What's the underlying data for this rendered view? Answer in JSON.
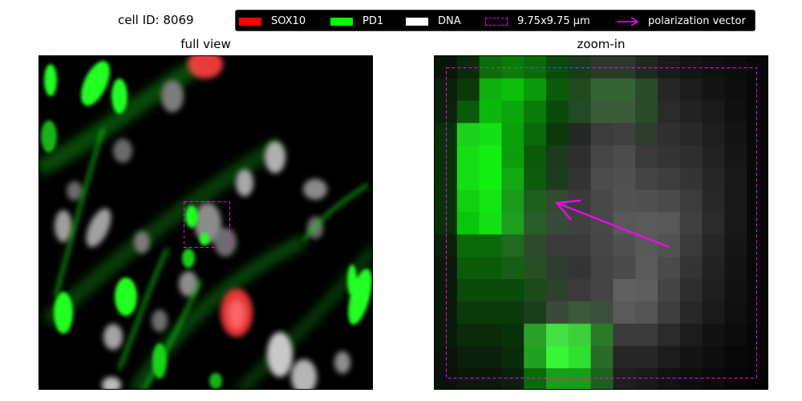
{
  "header": {
    "cell_label": "cell ID: 8069"
  },
  "legend": {
    "items": [
      {
        "label": "SOX10",
        "color": "#ff0000",
        "style": "filled"
      },
      {
        "label": "PD1",
        "color": "#00ff00",
        "style": "filled"
      },
      {
        "label": "DNA",
        "color": "#ffffff",
        "style": "filled"
      },
      {
        "label": "9.75x9.75 μm",
        "color": "#ff00ff",
        "style": "dashed-box"
      },
      {
        "label": "polarization vector",
        "color": "#ff00ff",
        "style": "arrow"
      }
    ]
  },
  "panels": {
    "full_view": {
      "title": "full view"
    },
    "zoom_in": {
      "title": "zoom-in"
    }
  },
  "colors": {
    "sox10": "#ff0000",
    "pd1": "#00ff00",
    "dna": "#ffffff",
    "roi": "#ff00ff",
    "vector": "#ff00ff"
  }
}
